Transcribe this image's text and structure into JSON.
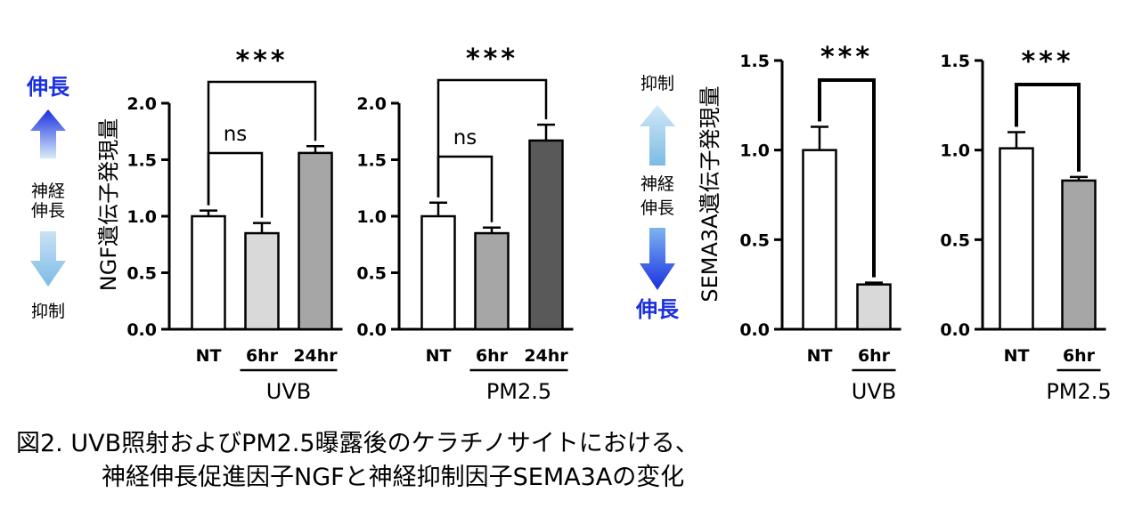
{
  "colors": {
    "grow_blue": "#1a2fe0",
    "suppress_blue_light": "#a8d3ee",
    "bar_white": "#ffffff",
    "bar_light_gray": "#d9d9d9",
    "bar_mid_gray": "#a6a6a6",
    "bar_dark_gray": "#595959"
  },
  "side_labels": {
    "left": {
      "top": "伸長",
      "middle_1": "神経",
      "middle_2": "伸長",
      "bottom": "抑制"
    },
    "right": {
      "top": "抑制",
      "middle_1": "神経",
      "middle_2": "伸長",
      "bottom": "伸長"
    }
  },
  "caption": {
    "line1": "図2.  UVB照射およびPM2.5曝露後のケラチノサイトにおける、",
    "line2": "神経伸長促進因子NGFと神経抑制因子SEMA3Aの変化"
  },
  "chart_data": [
    {
      "type": "bar",
      "ylabel": "NGF遺伝子発現量",
      "ylim": [
        0,
        2.0
      ],
      "yticks": [
        "0.0",
        "0.5",
        "1.0",
        "1.5",
        "2.0"
      ],
      "categories": [
        "NT",
        "6hr",
        "24hr"
      ],
      "values": [
        1.0,
        0.85,
        1.56
      ],
      "errors": [
        0.05,
        0.09,
        0.06
      ],
      "fills": [
        "#ffffff",
        "#d9d9d9",
        "#a6a6a6"
      ],
      "group_label": "UVB",
      "significance": [
        {
          "from": 0,
          "to": 1,
          "label": "ns"
        },
        {
          "from": 0,
          "to": 2,
          "label": "***"
        }
      ]
    },
    {
      "type": "bar",
      "ylabel": "",
      "ylim": [
        0,
        2.0
      ],
      "yticks": [
        "0.0",
        "0.5",
        "1.0",
        "1.5",
        "2.0"
      ],
      "categories": [
        "NT",
        "6hr",
        "24hr"
      ],
      "values": [
        1.0,
        0.85,
        1.67
      ],
      "errors": [
        0.12,
        0.05,
        0.14
      ],
      "fills": [
        "#ffffff",
        "#a6a6a6",
        "#595959"
      ],
      "group_label": "PM2.5",
      "significance": [
        {
          "from": 0,
          "to": 1,
          "label": "ns"
        },
        {
          "from": 0,
          "to": 2,
          "label": "***"
        }
      ]
    },
    {
      "type": "bar",
      "ylabel": "SEMA3A遺伝子発現量",
      "ylim": [
        0,
        1.5
      ],
      "yticks": [
        "0.0",
        "0.5",
        "1.0",
        "1.5"
      ],
      "categories": [
        "NT",
        "6hr"
      ],
      "values": [
        1.0,
        0.25
      ],
      "errors": [
        0.13,
        0.01
      ],
      "fills": [
        "#ffffff",
        "#d9d9d9"
      ],
      "group_label": "UVB",
      "significance": [
        {
          "from": 0,
          "to": 1,
          "label": "***"
        }
      ]
    },
    {
      "type": "bar",
      "ylabel": "",
      "ylim": [
        0,
        1.5
      ],
      "yticks": [
        "0.0",
        "0.5",
        "1.0",
        "1.5"
      ],
      "categories": [
        "NT",
        "6hr"
      ],
      "values": [
        1.01,
        0.83
      ],
      "errors": [
        0.09,
        0.02
      ],
      "fills": [
        "#ffffff",
        "#a6a6a6"
      ],
      "group_label": "PM2.5",
      "significance": [
        {
          "from": 0,
          "to": 1,
          "label": "***"
        }
      ]
    }
  ]
}
